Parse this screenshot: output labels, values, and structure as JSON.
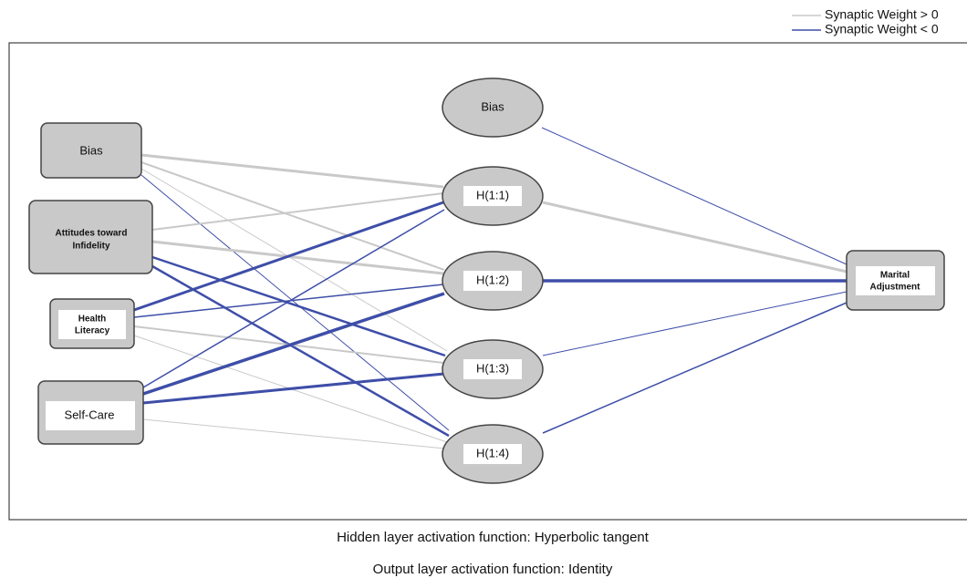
{
  "legend": [
    "Synaptic Weight > 0",
    "Synaptic Weight < 0"
  ],
  "input_layer": [
    {
      "label": [
        "Bias"
      ]
    },
    {
      "label": [
        "Attitudes toward",
        "Infidelity"
      ]
    },
    {
      "label": [
        "Health",
        "Literacy"
      ]
    },
    {
      "label": [
        "Self-Care"
      ]
    }
  ],
  "hidden_layer": [
    {
      "label": [
        "Bias"
      ]
    },
    {
      "label": [
        "H(1:1)"
      ]
    },
    {
      "label": [
        "H(1:2)"
      ]
    },
    {
      "label": [
        "H(1:3)"
      ]
    },
    {
      "label": [
        "H(1:4)"
      ]
    }
  ],
  "output_layer": [
    {
      "label": [
        "Marital",
        "Adjustment"
      ]
    }
  ],
  "footer": [
    "Hidden layer activation function: Hyperbolic tangent",
    "Output layer activation function: Identity"
  ]
}
